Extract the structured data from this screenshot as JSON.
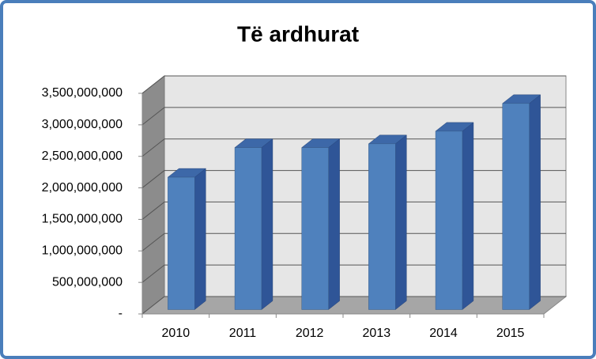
{
  "chart_data": {
    "type": "bar3d",
    "title": "Të ardhurat",
    "categories": [
      "2010",
      "2011",
      "2012",
      "2013",
      "2014",
      "2015"
    ],
    "values": [
      2100000000,
      2570000000,
      2570000000,
      2630000000,
      2830000000,
      3270000000
    ],
    "color": "#4f81bd",
    "ylim": [
      0,
      3500000000
    ],
    "yticks": [
      {
        "value": 0,
        "label": "-"
      },
      {
        "value": 500000000,
        "label": "500,000,000"
      },
      {
        "value": 1000000000,
        "label": "1,000,000,000"
      },
      {
        "value": 1500000000,
        "label": "1,500,000,000"
      },
      {
        "value": 2000000000,
        "label": "2,000,000,000"
      },
      {
        "value": 2500000000,
        "label": "2,500,000,000"
      },
      {
        "value": 3000000000,
        "label": "3,000,000,000"
      },
      {
        "value": 3500000000,
        "label": "3,500,000,000"
      }
    ],
    "grid": true
  }
}
